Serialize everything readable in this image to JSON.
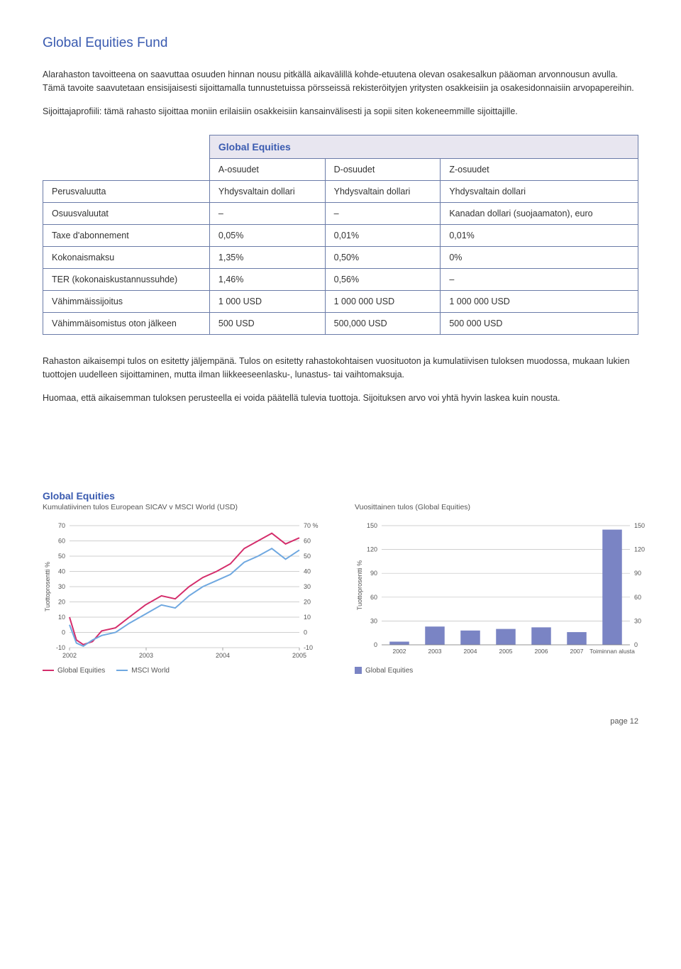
{
  "heading": "Global Equities Fund",
  "heading_color": "#3a5bb0",
  "para1": "Alarahaston tavoitteena on saavuttaa osuuden hinnan nousu pitkällä aikavälillä kohde-etuutena olevan osakesalkun pääoman arvonnousun avulla. Tämä tavoite saavutetaan ensisijaisesti sijoittamalla tunnustetuissa pörsseissä rekisteröityjen yritysten osakkeisiin ja osakesidonnaisiin arvopapereihin.",
  "para2": "Sijoittajaprofiili: tämä rahasto sijoittaa moniin erilaisiin osakkeisiin kansainvälisesti ja sopii siten kokeneemmille sijoittajille.",
  "para3": "Rahaston aikaisempi tulos on esitetty jäljempänä. Tulos on esitetty rahastokohtaisen vuosituoton ja kumulatiivisen tuloksen muodossa, mukaan lukien tuottojen uudelleen sijoittaminen, mutta ilman liikkeeseenlasku-, lunastus- tai vaihtomaksuja.",
  "para4": "Huomaa, että aikaisemman tuloksen perusteella ei voida päätellä tulevia tuottoja. Sijoituksen arvo voi yhtä hyvin laskea kuin nousta.",
  "table": {
    "header_bg": "#e8e6f0",
    "header_color": "#3a5bb0",
    "header_label": "Global Equities",
    "cols": [
      "",
      "A-osuudet",
      "D-osuudet",
      "Z-osuudet"
    ],
    "rows": [
      [
        "Perusvaluutta",
        "Yhdysvaltain dollari",
        "Yhdysvaltain dollari",
        "Yhdysvaltain dollari"
      ],
      [
        "Osuusvaluutat",
        "–",
        "–",
        "Kanadan dollari (suojaamaton), euro"
      ],
      [
        "Taxe d'abonnement",
        "0,05%",
        "0,01%",
        "0,01%"
      ],
      [
        "Kokonaismaksu",
        "1,35%",
        "0,50%",
        "0%"
      ],
      [
        "TER (kokonaiskustannussuhde)",
        "1,46%",
        "0,56%",
        "–"
      ],
      [
        "Vähimmäissijoitus",
        "1 000 USD",
        "1 000 000 USD",
        "1 000 000 USD"
      ],
      [
        "Vähimmäisomistus oton jälkeen",
        "500 USD",
        "500,000 USD",
        "500 000 USD"
      ]
    ]
  },
  "chart_line": {
    "type": "line",
    "title": "Global Equities",
    "title_color": "#3a5bb0",
    "subtitle": "Kumulatiivinen tulos European SICAV v MSCI World (USD)",
    "ylabel": "Tuottoprosentti %",
    "ylim": [
      -10,
      70
    ],
    "ytick_step": 10,
    "x_labels": [
      "2002",
      "2003",
      "2004",
      "2005"
    ],
    "right_label_suffix": " %",
    "grid_color": "#bfbfbf",
    "axis_color": "#808080",
    "label_fontsize": 9,
    "series": [
      {
        "name": "Global Equities",
        "color": "#d42d6b",
        "width": 2,
        "points": [
          [
            0,
            10
          ],
          [
            3,
            -5
          ],
          [
            6,
            -8
          ],
          [
            10,
            -6
          ],
          [
            14,
            1
          ],
          [
            20,
            3
          ],
          [
            26,
            10
          ],
          [
            33,
            18
          ],
          [
            40,
            24
          ],
          [
            46,
            22
          ],
          [
            52,
            30
          ],
          [
            58,
            36
          ],
          [
            64,
            40
          ],
          [
            70,
            45
          ],
          [
            76,
            55
          ],
          [
            82,
            60
          ],
          [
            88,
            65
          ],
          [
            94,
            58
          ],
          [
            100,
            62
          ]
        ]
      },
      {
        "name": "MSCI World",
        "color": "#6fa8e0",
        "width": 2,
        "points": [
          [
            0,
            5
          ],
          [
            3,
            -7
          ],
          [
            6,
            -9
          ],
          [
            10,
            -5
          ],
          [
            14,
            -2
          ],
          [
            20,
            0
          ],
          [
            26,
            6
          ],
          [
            33,
            12
          ],
          [
            40,
            18
          ],
          [
            46,
            16
          ],
          [
            52,
            24
          ],
          [
            58,
            30
          ],
          [
            64,
            34
          ],
          [
            70,
            38
          ],
          [
            76,
            46
          ],
          [
            82,
            50
          ],
          [
            88,
            55
          ],
          [
            94,
            48
          ],
          [
            100,
            54
          ]
        ]
      }
    ]
  },
  "chart_bar": {
    "type": "bar",
    "subtitle": "Vuosittainen tulos (Global Equities)",
    "ylabel": "Tuottoprosentti %",
    "ylim": [
      0,
      150
    ],
    "ytick_step": 30,
    "grid_color": "#bfbfbf",
    "axis_color": "#808080",
    "label_fontsize": 9,
    "bar_color": "#7a84c4",
    "categories": [
      "2002",
      "2003",
      "2004",
      "2005",
      "2006",
      "2007",
      "Toiminnan alusta"
    ],
    "values": [
      4,
      23,
      18,
      20,
      22,
      16,
      145
    ],
    "bar_width": 0.55,
    "legend_label": "Global Equities"
  },
  "page_label": "page 12"
}
